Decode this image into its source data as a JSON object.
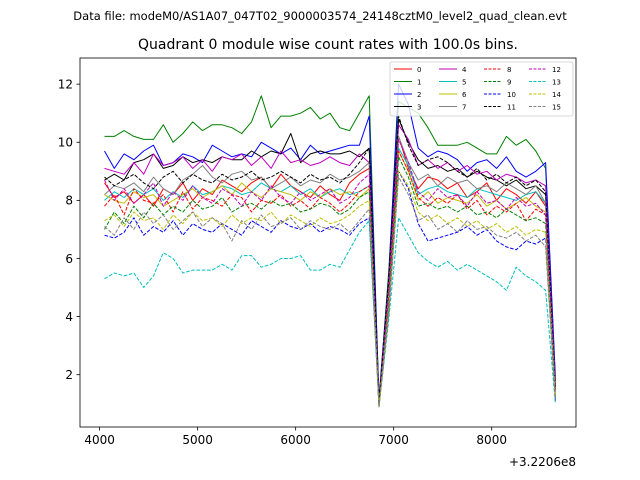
{
  "figure": {
    "suptitle": "Data file: modeM0/AS1A07_047T02_9000003574_24148cztM0_level2_quad_clean.evt",
    "title": "Quadrant 0 module wise count rates with 100.0s bins.",
    "offset_label": "+3.2206e8"
  },
  "chart_data": {
    "type": "line",
    "title": "Quadrant 0 module wise count rates with 100.0s bins.",
    "xlabel": "",
    "ylabel": "",
    "x_offset": 322060000,
    "x_offset_label": "+3.2206e8",
    "xlim": [
      3800,
      8860
    ],
    "ylim": [
      0.2,
      12.9
    ],
    "xticks": [
      4000,
      5000,
      6000,
      7000,
      8000
    ],
    "xtick_labels": [
      "4000",
      "5000",
      "6000",
      "7000",
      "8000"
    ],
    "yticks": [
      2,
      4,
      6,
      8,
      10,
      12
    ],
    "ytick_labels": [
      "2",
      "4",
      "6",
      "8",
      "10",
      "12"
    ],
    "grid": false,
    "legend": "upper right, 4 columns",
    "x": [
      4050,
      4150,
      4250,
      4350,
      4450,
      4550,
      4650,
      4750,
      4850,
      4950,
      5050,
      5150,
      5250,
      5350,
      5450,
      5550,
      5650,
      5750,
      5850,
      5950,
      6050,
      6150,
      6250,
      6350,
      6450,
      6550,
      6650,
      6750,
      6850,
      6950,
      7050,
      7150,
      7250,
      7350,
      7450,
      7550,
      7650,
      7750,
      7850,
      7950,
      8050,
      8150,
      8250,
      8350,
      8450,
      8550,
      8650
    ],
    "series": [
      {
        "name": "0",
        "color": "#ff0000",
        "dash": "solid",
        "values": [
          8.6,
          8.1,
          8.3,
          7.9,
          8.2,
          7.8,
          8.4,
          8.2,
          8.6,
          8.0,
          8.4,
          8.2,
          8.7,
          8.5,
          8.3,
          8.6,
          8.8,
          8.4,
          8.9,
          8.5,
          8.3,
          8.1,
          8.5,
          8.2,
          8.0,
          8.6,
          8.9,
          9.1,
          1.0,
          5.0,
          10.2,
          9.1,
          8.4,
          8.8,
          8.7,
          8.4,
          8.6,
          8.1,
          8.3,
          8.6,
          8.0,
          8.4,
          8.2,
          7.9,
          8.3,
          7.8,
          1.5
        ]
      },
      {
        "name": "1",
        "color": "#008000",
        "dash": "solid",
        "values": [
          10.2,
          10.2,
          10.4,
          10.2,
          10.1,
          10.1,
          10.6,
          10.0,
          10.3,
          10.7,
          10.4,
          10.6,
          10.6,
          10.5,
          10.3,
          10.7,
          11.6,
          10.5,
          10.9,
          10.9,
          11.0,
          11.2,
          10.8,
          11.0,
          10.5,
          10.4,
          11.0,
          11.6,
          1.1,
          5.6,
          11.4,
          11.2,
          11.0,
          10.5,
          9.9,
          9.9,
          9.9,
          10.0,
          9.8,
          9.6,
          9.6,
          10.2,
          9.9,
          10.1,
          9.7,
          9.1,
          1.8
        ]
      },
      {
        "name": "2",
        "color": "#0000ff",
        "dash": "solid",
        "values": [
          9.7,
          9.1,
          9.6,
          9.4,
          9.7,
          9.9,
          9.2,
          9.3,
          9.6,
          9.5,
          9.3,
          9.9,
          9.7,
          9.5,
          9.6,
          9.5,
          10.0,
          9.8,
          9.6,
          9.8,
          9.4,
          9.9,
          9.6,
          9.7,
          9.8,
          9.9,
          9.9,
          10.9,
          1.2,
          5.4,
          12.0,
          11.3,
          9.8,
          9.5,
          9.7,
          9.6,
          9.4,
          9.0,
          9.3,
          9.4,
          9.1,
          9.5,
          9.0,
          8.8,
          9.0,
          9.3,
          1.9
        ]
      },
      {
        "name": "3",
        "color": "#000000",
        "dash": "solid",
        "values": [
          8.7,
          8.9,
          8.7,
          9.3,
          9.4,
          9.6,
          9.1,
          9.2,
          9.5,
          9.3,
          9.4,
          9.3,
          9.5,
          9.4,
          9.4,
          9.7,
          9.5,
          9.7,
          9.6,
          10.3,
          9.3,
          9.6,
          9.7,
          9.6,
          9.6,
          9.7,
          9.5,
          9.8,
          1.1,
          5.3,
          10.8,
          10.0,
          9.4,
          9.1,
          9.2,
          9.0,
          9.1,
          8.8,
          9.0,
          8.8,
          8.7,
          8.5,
          8.7,
          8.4,
          8.5,
          8.2,
          1.6
        ]
      },
      {
        "name": "4",
        "color": "#bf00bf",
        "dash": "solid",
        "values": [
          9.1,
          9.0,
          8.9,
          9.3,
          8.9,
          9.6,
          9.2,
          9.3,
          9.5,
          9.1,
          9.4,
          9.0,
          9.5,
          9.4,
          9.6,
          9.2,
          9.5,
          9.1,
          9.7,
          9.3,
          9.4,
          9.2,
          9.3,
          9.5,
          9.3,
          9.2,
          9.6,
          9.3,
          1.0,
          5.2,
          10.6,
          10.1,
          9.2,
          9.4,
          9.1,
          9.3,
          9.0,
          9.2,
          8.9,
          9.0,
          8.7,
          8.9,
          8.8,
          8.6,
          8.7,
          8.5,
          1.6
        ]
      },
      {
        "name": "5",
        "color": "#00bfbf",
        "dash": "solid",
        "values": [
          8.0,
          8.3,
          8.1,
          8.4,
          8.2,
          8.4,
          8.0,
          8.3,
          8.1,
          8.5,
          8.2,
          8.3,
          8.5,
          8.4,
          8.2,
          8.3,
          8.6,
          8.4,
          8.3,
          8.5,
          8.2,
          8.4,
          8.1,
          8.3,
          8.4,
          8.2,
          8.3,
          8.5,
          1.0,
          5.1,
          9.8,
          9.2,
          8.2,
          8.4,
          8.5,
          8.3,
          8.2,
          8.1,
          8.4,
          8.3,
          8.2,
          8.1,
          8.0,
          8.2,
          8.3,
          7.9,
          1.5
        ]
      },
      {
        "name": "6",
        "color": "#bfbf00",
        "dash": "solid",
        "values": [
          8.2,
          8.0,
          7.9,
          8.3,
          8.1,
          8.2,
          7.8,
          8.0,
          8.2,
          8.4,
          8.1,
          8.3,
          8.5,
          8.2,
          8.6,
          8.3,
          8.1,
          8.4,
          8.3,
          8.2,
          8.0,
          8.3,
          8.1,
          8.4,
          8.2,
          8.3,
          8.1,
          8.4,
          0.9,
          5.0,
          9.7,
          9.0,
          8.0,
          8.3,
          7.9,
          8.1,
          8.0,
          7.9,
          8.2,
          7.8,
          8.0,
          7.7,
          7.9,
          8.1,
          7.8,
          7.6,
          1.4
        ]
      },
      {
        "name": "7",
        "color": "#808080",
        "dash": "solid",
        "values": [
          8.2,
          8.5,
          8.4,
          8.6,
          8.3,
          8.8,
          8.4,
          8.2,
          8.7,
          8.9,
          9.2,
          8.8,
          8.6,
          8.9,
          9.0,
          8.7,
          8.8,
          8.4,
          8.6,
          8.8,
          8.5,
          8.7,
          8.6,
          8.9,
          8.7,
          8.8,
          9.0,
          9.3,
          1.0,
          5.1,
          10.2,
          9.3,
          8.7,
          8.9,
          8.5,
          8.8,
          8.6,
          8.7,
          8.4,
          8.5,
          8.3,
          8.6,
          8.4,
          8.2,
          8.5,
          7.9,
          1.5
        ]
      },
      {
        "name": "8",
        "color": "#ff0000",
        "dash": "dashed",
        "values": [
          7.8,
          8.2,
          7.5,
          8.4,
          8.0,
          7.9,
          8.2,
          7.6,
          8.3,
          7.7,
          8.1,
          8.0,
          7.8,
          8.2,
          8.1,
          7.6,
          8.0,
          7.9,
          8.2,
          7.8,
          8.0,
          7.7,
          8.1,
          7.9,
          7.6,
          7.9,
          8.3,
          8.5,
          0.9,
          4.6,
          9.7,
          9.0,
          8.1,
          7.8,
          8.1,
          7.9,
          8.2,
          7.7,
          8.0,
          7.5,
          7.8,
          7.6,
          7.9,
          7.3,
          7.7,
          7.5,
          1.3
        ]
      },
      {
        "name": "9",
        "color": "#008000",
        "dash": "dashed",
        "values": [
          7.0,
          7.6,
          7.2,
          7.8,
          7.4,
          7.9,
          7.5,
          7.8,
          7.6,
          8.0,
          7.7,
          7.8,
          8.1,
          7.6,
          7.8,
          7.9,
          7.7,
          8.0,
          7.8,
          7.9,
          7.6,
          7.7,
          7.9,
          7.8,
          7.5,
          7.7,
          8.1,
          8.3,
          0.9,
          4.4,
          9.5,
          8.8,
          7.8,
          7.9,
          7.7,
          7.8,
          7.6,
          7.8,
          7.5,
          7.6,
          7.4,
          7.7,
          7.5,
          7.3,
          7.4,
          7.2,
          1.2
        ]
      },
      {
        "name": "10",
        "color": "#0000ff",
        "dash": "dashed",
        "values": [
          6.8,
          6.7,
          6.9,
          7.4,
          6.8,
          7.1,
          6.9,
          7.3,
          6.8,
          7.2,
          7.0,
          6.9,
          7.2,
          7.0,
          6.8,
          7.3,
          7.1,
          6.9,
          7.3,
          7.1,
          7.0,
          7.2,
          6.9,
          7.1,
          7.0,
          6.8,
          7.2,
          7.4,
          0.9,
          4.2,
          9.0,
          8.4,
          7.2,
          6.6,
          6.7,
          6.8,
          6.9,
          7.1,
          6.8,
          7.0,
          6.6,
          6.4,
          6.3,
          6.6,
          6.5,
          6.7,
          1.1
        ]
      },
      {
        "name": "11",
        "color": "#000000",
        "dash": "dashed",
        "values": [
          8.8,
          8.5,
          8.7,
          8.9,
          8.6,
          8.4,
          8.8,
          9.0,
          8.6,
          8.9,
          8.7,
          8.6,
          8.9,
          8.7,
          8.8,
          9.0,
          8.7,
          8.8,
          9.0,
          8.8,
          8.6,
          8.9,
          8.7,
          8.8,
          8.6,
          8.9,
          9.3,
          9.8,
          1.0,
          5.3,
          10.9,
          9.9,
          9.2,
          9.4,
          9.5,
          9.3,
          9.0,
          8.8,
          9.1,
          8.7,
          8.9,
          8.6,
          8.8,
          8.5,
          8.7,
          8.3,
          1.5
        ]
      },
      {
        "name": "12",
        "color": "#bf00bf",
        "dash": "dashed",
        "values": [
          8.7,
          8.0,
          8.4,
          7.9,
          8.2,
          8.6,
          7.8,
          8.3,
          8.0,
          8.5,
          8.1,
          7.9,
          8.4,
          8.2,
          7.8,
          8.3,
          8.0,
          8.5,
          8.1,
          7.9,
          8.3,
          8.0,
          8.2,
          8.4,
          7.9,
          8.1,
          8.6,
          8.9,
          0.9,
          4.9,
          10.1,
          9.3,
          8.3,
          8.0,
          8.4,
          8.1,
          8.2,
          7.8,
          8.3,
          7.9,
          8.0,
          7.7,
          8.1,
          7.8,
          7.9,
          7.5,
          1.4
        ]
      },
      {
        "name": "13",
        "color": "#00bfbf",
        "dash": "dashed",
        "values": [
          5.3,
          5.5,
          5.4,
          5.5,
          5.0,
          5.4,
          6.2,
          6.0,
          5.5,
          5.6,
          5.6,
          5.6,
          5.8,
          5.6,
          6.1,
          6.1,
          5.7,
          5.8,
          6.0,
          6.0,
          6.1,
          5.6,
          5.6,
          5.8,
          5.7,
          6.3,
          6.9,
          7.3,
          0.9,
          3.9,
          7.4,
          6.8,
          6.2,
          5.9,
          5.7,
          5.9,
          5.6,
          5.8,
          5.6,
          5.4,
          5.2,
          4.9,
          5.7,
          5.4,
          5.2,
          4.9,
          1.0
        ]
      },
      {
        "name": "14",
        "color": "#bfbf00",
        "dash": "dashed",
        "values": [
          7.3,
          7.5,
          7.1,
          7.6,
          7.3,
          7.4,
          7.0,
          7.5,
          7.2,
          7.6,
          7.3,
          7.4,
          7.1,
          7.5,
          7.2,
          7.4,
          7.3,
          7.6,
          7.2,
          7.5,
          7.3,
          7.1,
          7.4,
          7.2,
          7.3,
          7.5,
          7.8,
          8.0,
          0.9,
          4.3,
          9.0,
          8.5,
          7.6,
          7.3,
          7.5,
          7.2,
          7.4,
          7.1,
          7.3,
          7.0,
          7.2,
          6.9,
          7.1,
          6.8,
          7.0,
          6.9,
          1.2
        ]
      },
      {
        "name": "15",
        "color": "#808080",
        "dash": "dashed",
        "values": [
          7.1,
          6.8,
          7.4,
          7.0,
          7.6,
          7.2,
          7.5,
          7.0,
          7.3,
          7.6,
          7.1,
          7.4,
          7.2,
          6.6,
          7.3,
          7.0,
          7.5,
          7.1,
          7.2,
          7.4,
          7.0,
          7.3,
          7.1,
          7.0,
          7.2,
          6.9,
          7.3,
          7.7,
          0.9,
          4.1,
          8.8,
          8.2,
          7.3,
          7.5,
          7.0,
          7.2,
          6.9,
          7.3,
          7.0,
          7.1,
          6.8,
          6.7,
          6.9,
          6.6,
          6.8,
          6.4,
          1.1
        ]
      }
    ]
  }
}
